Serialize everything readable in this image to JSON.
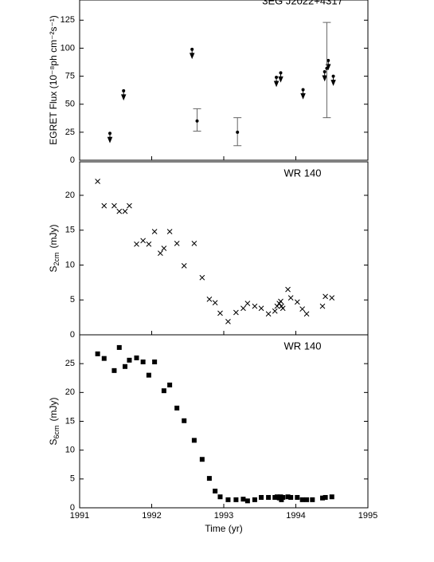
{
  "chart_data": [
    {
      "type": "scatter",
      "title": "3EG J2022+4317",
      "ylabel": "EGRET Flux (10⁻⁸ph cm⁻²s⁻¹)",
      "xlim": [
        1991,
        1995
      ],
      "xticks": [
        1991,
        1992,
        1993,
        1994,
        1995
      ],
      "ylim": [
        0,
        143
      ],
      "yticks": [
        0,
        25,
        50,
        75,
        100,
        125
      ],
      "upper_limits": {
        "marker": "arrow",
        "x": [
          1991.42,
          1991.61,
          1992.56,
          1993.73,
          1993.79,
          1994.1,
          1994.4,
          1994.45,
          1994.52
        ],
        "values": [
          24,
          62,
          99,
          74,
          78,
          63,
          79,
          89,
          75
        ]
      },
      "detections": {
        "marker": "dot",
        "x": [
          1992.63,
          1993.19,
          1994.43
        ],
        "values": [
          35,
          25,
          82
        ],
        "yerr_minus": [
          9,
          12,
          44
        ],
        "yerr_plus": [
          11,
          13,
          41
        ]
      }
    },
    {
      "type": "scatter",
      "title": "WR 140",
      "ylabel": {
        "main": "S",
        "sub": "2cm",
        "unit": "(mJy)"
      },
      "xlim": [
        1991,
        1995
      ],
      "xticks": [
        1991,
        1992,
        1993,
        1994,
        1995
      ],
      "ylim": [
        0,
        24.8
      ],
      "yticks": [
        0,
        5,
        10,
        15,
        20
      ],
      "marker": "x",
      "x": [
        1991.25,
        1991.34,
        1991.48,
        1991.55,
        1991.63,
        1991.69,
        1991.79,
        1991.88,
        1991.96,
        1992.04,
        1992.12,
        1992.17,
        1992.25,
        1992.35,
        1992.45,
        1992.59,
        1992.7,
        1992.8,
        1992.88,
        1992.95,
        1993.06,
        1993.17,
        1993.27,
        1993.33,
        1993.43,
        1993.52,
        1993.62,
        1993.71,
        1993.74,
        1993.77,
        1993.79,
        1993.8,
        1993.82,
        1993.89,
        1993.93,
        1994.02,
        1994.09,
        1994.15,
        1994.37,
        1994.41,
        1994.5
      ],
      "values": [
        22.0,
        18.5,
        18.5,
        17.7,
        17.7,
        18.5,
        13.0,
        13.5,
        13.0,
        14.8,
        11.7,
        12.4,
        14.8,
        13.1,
        9.9,
        13.1,
        8.2,
        5.1,
        4.6,
        3.1,
        1.9,
        3.2,
        3.8,
        4.5,
        4.1,
        3.8,
        3.0,
        3.4,
        4.1,
        4.5,
        4.8,
        4.1,
        3.8,
        6.5,
        5.3,
        4.7,
        3.7,
        3.0,
        4.1,
        5.5,
        5.3
      ]
    },
    {
      "type": "scatter",
      "title": "WR 140",
      "ylabel": {
        "main": "S",
        "sub": "6cm",
        "unit": "(mJy)"
      },
      "xlabel": "Time (yr)",
      "xlim": [
        1991,
        1995
      ],
      "xticks": [
        1991,
        1992,
        1993,
        1994,
        1995
      ],
      "ylim": [
        0,
        30
      ],
      "yticks": [
        0,
        5,
        10,
        15,
        20,
        25
      ],
      "marker": "square",
      "x": [
        1991.25,
        1991.34,
        1991.48,
        1991.55,
        1991.63,
        1991.69,
        1991.79,
        1991.88,
        1991.96,
        1992.04,
        1992.17,
        1992.25,
        1992.35,
        1992.45,
        1992.59,
        1992.7,
        1992.8,
        1992.88,
        1992.95,
        1993.06,
        1993.17,
        1993.27,
        1993.33,
        1993.43,
        1993.52,
        1993.62,
        1993.71,
        1993.74,
        1993.77,
        1993.79,
        1993.8,
        1993.82,
        1993.89,
        1993.93,
        1994.02,
        1994.09,
        1994.15,
        1994.23,
        1994.37,
        1994.41,
        1994.5
      ],
      "values": [
        26.7,
        25.9,
        23.8,
        27.8,
        24.5,
        25.6,
        26.0,
        25.3,
        23.0,
        25.3,
        20.3,
        21.3,
        17.3,
        15.1,
        11.7,
        8.4,
        5.1,
        2.9,
        1.9,
        1.4,
        1.4,
        1.5,
        1.2,
        1.4,
        1.8,
        1.8,
        1.8,
        1.9,
        1.7,
        1.9,
        1.4,
        1.8,
        1.9,
        1.8,
        1.8,
        1.4,
        1.4,
        1.4,
        1.7,
        1.8,
        1.9
      ]
    }
  ]
}
